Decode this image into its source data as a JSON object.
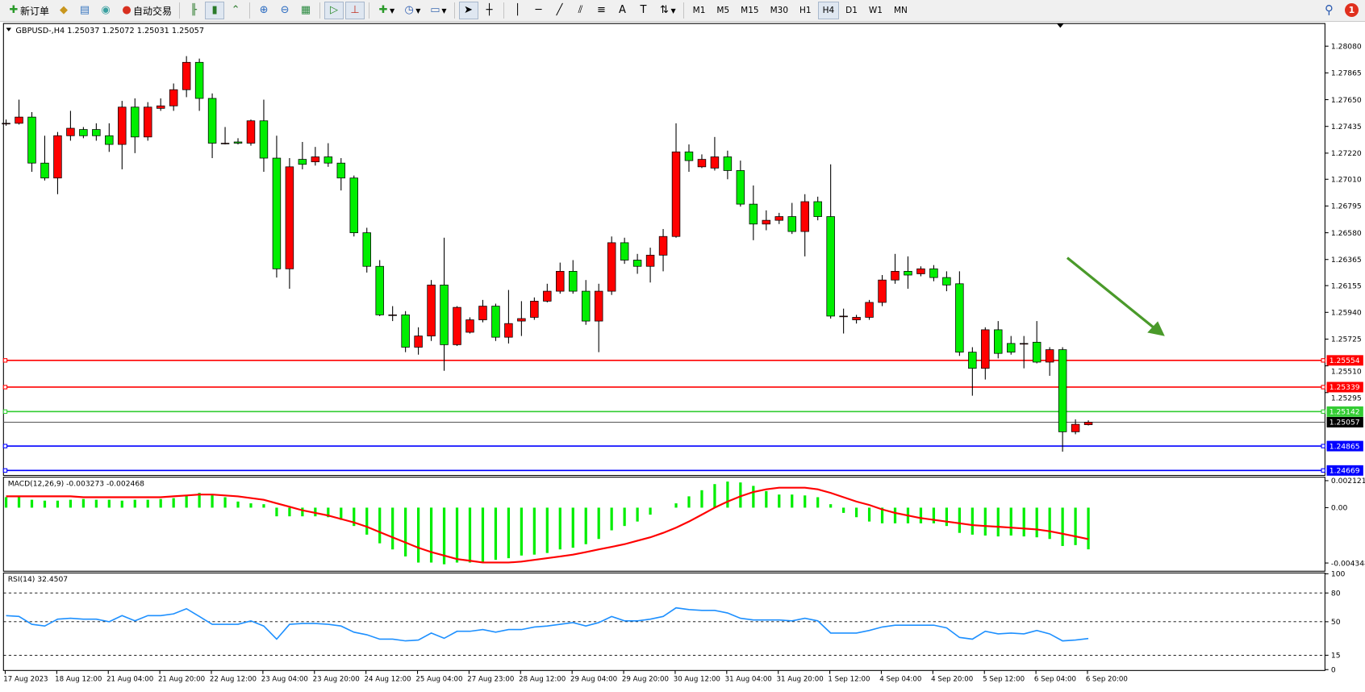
{
  "toolbar": {
    "new_order": "新订单",
    "auto_trading": "自动交易",
    "timeframes": [
      "M1",
      "M5",
      "M15",
      "M30",
      "H1",
      "H4",
      "D1",
      "W1",
      "MN"
    ],
    "active_timeframe": "H4",
    "notifications_count": "1"
  },
  "chart": {
    "header": "GBPUSD-,H4  1.25037 1.25072 1.25031 1.25057",
    "colors": {
      "bull": "#ff0000",
      "bear": "#00ee00",
      "wick": "#000000",
      "arrow": "#4a9a2a"
    },
    "price_ticks": [
      "1.28080",
      "1.27865",
      "1.27650",
      "1.27435",
      "1.27220",
      "1.27010",
      "1.26795",
      "1.26580",
      "1.26365",
      "1.26155",
      "1.25940",
      "1.25725",
      "1.25510",
      "1.25295"
    ],
    "levels": [
      {
        "price": "1.25554",
        "color": "#ff0000"
      },
      {
        "price": "1.25339",
        "color": "#ff0000"
      },
      {
        "price": "1.25142",
        "color": "#33cc33"
      },
      {
        "price": "1.25057",
        "color": "#000000"
      },
      {
        "price": "1.24865",
        "color": "#0000ff"
      },
      {
        "price": "1.24669",
        "color": "#0000ff"
      }
    ],
    "candles_ohlc": [
      [
        1.2746,
        1.2749,
        1.2744,
        1.2746
      ],
      [
        1.2746,
        1.2765,
        1.2745,
        1.2751
      ],
      [
        1.2751,
        1.2755,
        1.2707,
        1.2714
      ],
      [
        1.2714,
        1.2736,
        1.27,
        1.2702
      ],
      [
        1.2702,
        1.2739,
        1.2689,
        1.2736
      ],
      [
        1.2736,
        1.2756,
        1.2732,
        1.2742
      ],
      [
        1.2741,
        1.2743,
        1.2734,
        1.2736
      ],
      [
        1.2741,
        1.2746,
        1.2732,
        1.2736
      ],
      [
        1.2736,
        1.2746,
        1.2723,
        1.2729
      ],
      [
        1.2729,
        1.2764,
        1.2709,
        1.2759
      ],
      [
        1.2759,
        1.2766,
        1.2722,
        1.2735
      ],
      [
        1.2735,
        1.2763,
        1.2732,
        1.2759
      ],
      [
        1.2758,
        1.2766,
        1.2756,
        1.276
      ],
      [
        1.276,
        1.2778,
        1.2756,
        1.2773
      ],
      [
        1.2773,
        1.28,
        1.2767,
        1.2795
      ],
      [
        1.2795,
        1.2798,
        1.2756,
        1.2766
      ],
      [
        1.2766,
        1.277,
        1.2718,
        1.273
      ],
      [
        1.273,
        1.2743,
        1.2729,
        1.273
      ],
      [
        1.2731,
        1.2734,
        1.2729,
        1.273
      ],
      [
        1.273,
        1.2749,
        1.2728,
        1.2748
      ],
      [
        1.2748,
        1.2765,
        1.2707,
        1.2718
      ],
      [
        1.2718,
        1.2736,
        1.2622,
        1.2629
      ],
      [
        1.2629,
        1.2718,
        1.2613,
        1.2711
      ],
      [
        1.2717,
        1.2731,
        1.2709,
        1.2713
      ],
      [
        1.2715,
        1.2727,
        1.2712,
        1.2719
      ],
      [
        1.2719,
        1.273,
        1.2711,
        1.2714
      ],
      [
        1.2714,
        1.2718,
        1.2692,
        1.2702
      ],
      [
        1.2702,
        1.2704,
        1.2655,
        1.2658
      ],
      [
        1.2658,
        1.2662,
        1.2626,
        1.2631
      ],
      [
        1.2631,
        1.2636,
        1.2591,
        1.2592
      ],
      [
        1.2592,
        1.2599,
        1.2587,
        1.2592
      ],
      [
        1.2592,
        1.2595,
        1.2562,
        1.2566
      ],
      [
        1.2566,
        1.2582,
        1.256,
        1.2575
      ],
      [
        1.2575,
        1.262,
        1.2571,
        1.2616
      ],
      [
        1.2616,
        1.2654,
        1.2547,
        1.2568
      ],
      [
        1.2568,
        1.2599,
        1.2567,
        1.2598
      ],
      [
        1.2578,
        1.259,
        1.2577,
        1.2588
      ],
      [
        1.2588,
        1.2604,
        1.2586,
        1.2599
      ],
      [
        1.2599,
        1.2601,
        1.2571,
        1.2574
      ],
      [
        1.2574,
        1.2612,
        1.2569,
        1.2585
      ],
      [
        1.2587,
        1.2603,
        1.2575,
        1.2589
      ],
      [
        1.259,
        1.2606,
        1.2588,
        1.2603
      ],
      [
        1.2603,
        1.2617,
        1.2602,
        1.2611
      ],
      [
        1.2611,
        1.2634,
        1.2609,
        1.2627
      ],
      [
        1.2627,
        1.2636,
        1.2609,
        1.2611
      ],
      [
        1.2611,
        1.262,
        1.2584,
        1.2587
      ],
      [
        1.2587,
        1.2617,
        1.2562,
        1.2611
      ],
      [
        1.2611,
        1.2655,
        1.2608,
        1.265
      ],
      [
        1.265,
        1.2654,
        1.2633,
        1.2636
      ],
      [
        1.2636,
        1.2641,
        1.2625,
        1.2631
      ],
      [
        1.2631,
        1.2646,
        1.2618,
        1.264
      ],
      [
        1.264,
        1.2661,
        1.2627,
        1.2655
      ],
      [
        1.2655,
        1.2746,
        1.2654,
        1.2723
      ],
      [
        1.2723,
        1.2729,
        1.2707,
        1.2716
      ],
      [
        1.2711,
        1.2721,
        1.271,
        1.2717
      ],
      [
        1.271,
        1.2735,
        1.2708,
        1.2719
      ],
      [
        1.2719,
        1.2724,
        1.2701,
        1.2708
      ],
      [
        1.2708,
        1.2716,
        1.2679,
        1.2681
      ],
      [
        1.2681,
        1.2696,
        1.2652,
        1.2665
      ],
      [
        1.2665,
        1.2676,
        1.266,
        1.2668
      ],
      [
        1.2668,
        1.2674,
        1.2665,
        1.2671
      ],
      [
        1.2671,
        1.2682,
        1.2657,
        1.2659
      ],
      [
        1.2659,
        1.2689,
        1.2639,
        1.2683
      ],
      [
        1.2683,
        1.2687,
        1.2668,
        1.2671
      ],
      [
        1.2671,
        1.2713,
        1.2589,
        1.2591
      ],
      [
        1.2591,
        1.2597,
        1.2577,
        1.2591
      ],
      [
        1.2588,
        1.2592,
        1.2585,
        1.259
      ],
      [
        1.259,
        1.2604,
        1.2588,
        1.2602
      ],
      [
        1.2602,
        1.2624,
        1.2599,
        1.262
      ],
      [
        1.262,
        1.2641,
        1.2617,
        1.2627
      ],
      [
        1.2627,
        1.2639,
        1.2613,
        1.2624
      ],
      [
        1.2625,
        1.2631,
        1.2623,
        1.2629
      ],
      [
        1.2629,
        1.2632,
        1.2619,
        1.2622
      ],
      [
        1.2622,
        1.2627,
        1.2611,
        1.2616
      ],
      [
        1.2617,
        1.2627,
        1.2559,
        1.2562
      ],
      [
        1.2562,
        1.2566,
        1.2527,
        1.2549
      ],
      [
        1.2549,
        1.2582,
        1.254,
        1.258
      ],
      [
        1.258,
        1.2587,
        1.2557,
        1.2561
      ],
      [
        1.2569,
        1.2575,
        1.256,
        1.2562
      ],
      [
        1.2569,
        1.2575,
        1.2549,
        1.2569
      ],
      [
        1.257,
        1.2587,
        1.2553,
        1.2554
      ],
      [
        1.2554,
        1.2566,
        1.2543,
        1.2564
      ],
      [
        1.2564,
        1.2566,
        1.2482,
        1.2498
      ],
      [
        1.2498,
        1.2508,
        1.2496,
        1.2504
      ],
      [
        1.25037,
        1.25072,
        1.25031,
        1.25057
      ]
    ],
    "time_labels": [
      "17 Aug 2023",
      "18 Aug 12:00",
      "21 Aug 04:00",
      "21 Aug 20:00",
      "22 Aug 12:00",
      "23 Aug 04:00",
      "23 Aug 20:00",
      "24 Aug 12:00",
      "25 Aug 04:00",
      "27 Aug 23:00",
      "28 Aug 12:00",
      "29 Aug 04:00",
      "29 Aug 20:00",
      "30 Aug 12:00",
      "31 Aug 04:00",
      "31 Aug 20:00",
      "1 Sep 12:00",
      "4 Sep 04:00",
      "4 Sep 20:00",
      "5 Sep 12:00",
      "6 Sep 04:00",
      "6 Sep 20:00"
    ]
  },
  "macd": {
    "label": "MACD(12,26,9) -0.003273 -0.002468",
    "ticks": [
      "0.002121",
      "0.00",
      "-0.004348"
    ],
    "histogram_color": "#00ee00",
    "signal_color": "#ff0000",
    "main": [
      0.00082,
      0.00082,
      0.00062,
      0.00055,
      0.00055,
      0.00062,
      0.00068,
      0.00062,
      0.00062,
      0.00055,
      0.00062,
      0.00062,
      0.00068,
      0.00075,
      0.00096,
      0.00116,
      0.00103,
      0.00082,
      0.00048,
      0.00034,
      0.00027,
      -0.00068,
      -0.00068,
      -0.00068,
      -0.00068,
      -0.00075,
      -0.00096,
      -0.00144,
      -0.00212,
      -0.0028,
      -0.00328,
      -0.00383,
      -0.00431,
      -0.00431,
      -0.00445,
      -0.00431,
      -0.00431,
      -0.00431,
      -0.0041,
      -0.00397,
      -0.00376,
      -0.00369,
      -0.00356,
      -0.00328,
      -0.00315,
      -0.00287,
      -0.00246,
      -0.00178,
      -0.00144,
      -0.00109,
      -0.00055,
      0,
      0.00034,
      0.00089,
      0.00137,
      0.00185,
      0.00205,
      0.00198,
      0.00171,
      0.0013,
      0.00103,
      0.00103,
      0.00096,
      0.00082,
      0.00027,
      -0.00041,
      -0.00075,
      -0.00109,
      -0.00123,
      -0.00123,
      -0.00123,
      -0.00123,
      -0.00123,
      -0.00144,
      -0.00198,
      -0.00212,
      -0.00219,
      -0.00226,
      -0.00219,
      -0.00226,
      -0.00233,
      -0.00246,
      -0.00301,
      -0.00294,
      -0.003273
    ],
    "signal": [
      0.00089,
      0.00089,
      0.00089,
      0.00089,
      0.00089,
      0.00089,
      0.00082,
      0.00082,
      0.00082,
      0.00082,
      0.00082,
      0.00082,
      0.00082,
      0.00089,
      0.00096,
      0.00103,
      0.00103,
      0.00096,
      0.00089,
      0.00075,
      0.00062,
      0.00034,
      7e-05,
      -0.00021,
      -0.00041,
      -0.00062,
      -0.00089,
      -0.00116,
      -0.0015,
      -0.00192,
      -0.00233,
      -0.00274,
      -0.00315,
      -0.00349,
      -0.00376,
      -0.00404,
      -0.00417,
      -0.00431,
      -0.00431,
      -0.00431,
      -0.00424,
      -0.0041,
      -0.00397,
      -0.00383,
      -0.00369,
      -0.00349,
      -0.00328,
      -0.00308,
      -0.00287,
      -0.0026,
      -0.00233,
      -0.00198,
      -0.00157,
      -0.00109,
      -0.00055,
      0,
      0.00048,
      0.00089,
      0.00123,
      0.00144,
      0.00157,
      0.00157,
      0.00157,
      0.00144,
      0.00116,
      0.00082,
      0.00048,
      0.00021,
      -0.00014,
      -0.00041,
      -0.00062,
      -0.00082,
      -0.00096,
      -0.00109,
      -0.00123,
      -0.00137,
      -0.00144,
      -0.0015,
      -0.00157,
      -0.00164,
      -0.00171,
      -0.00185,
      -0.00205,
      -0.00226,
      -0.002468
    ]
  },
  "rsi": {
    "label": "RSI(14) 32.4507",
    "ticks": [
      "100",
      "80",
      "50",
      "15",
      "0"
    ],
    "levels": [
      80,
      50,
      15
    ],
    "color": "#1e90ff",
    "values": [
      56.4,
      55.5,
      47.3,
      45.5,
      52.7,
      53.6,
      52.7,
      52.7,
      50.0,
      56.4,
      50.9,
      56.4,
      56.4,
      58.2,
      63.6,
      55.5,
      47.3,
      47.3,
      47.3,
      50.9,
      45.5,
      31.8,
      47.3,
      48.2,
      48.2,
      47.3,
      45.5,
      39.1,
      36.4,
      31.8,
      31.8,
      30.0,
      30.9,
      38.2,
      32.7,
      40.0,
      40.0,
      41.8,
      39.1,
      41.8,
      41.8,
      44.5,
      45.5,
      47.3,
      49.1,
      45.5,
      49.1,
      55.5,
      50.9,
      50.9,
      52.7,
      55.5,
      64.5,
      62.7,
      61.8,
      61.8,
      59.1,
      53.6,
      51.8,
      51.8,
      51.8,
      50.9,
      53.6,
      50.9,
      38.2,
      38.2,
      38.2,
      40.9,
      44.5,
      46.4,
      46.4,
      46.4,
      46.4,
      43.6,
      33.6,
      31.8,
      40.0,
      37.3,
      38.2,
      37.3,
      40.9,
      37.3,
      30.0,
      30.9,
      32.45
    ]
  }
}
